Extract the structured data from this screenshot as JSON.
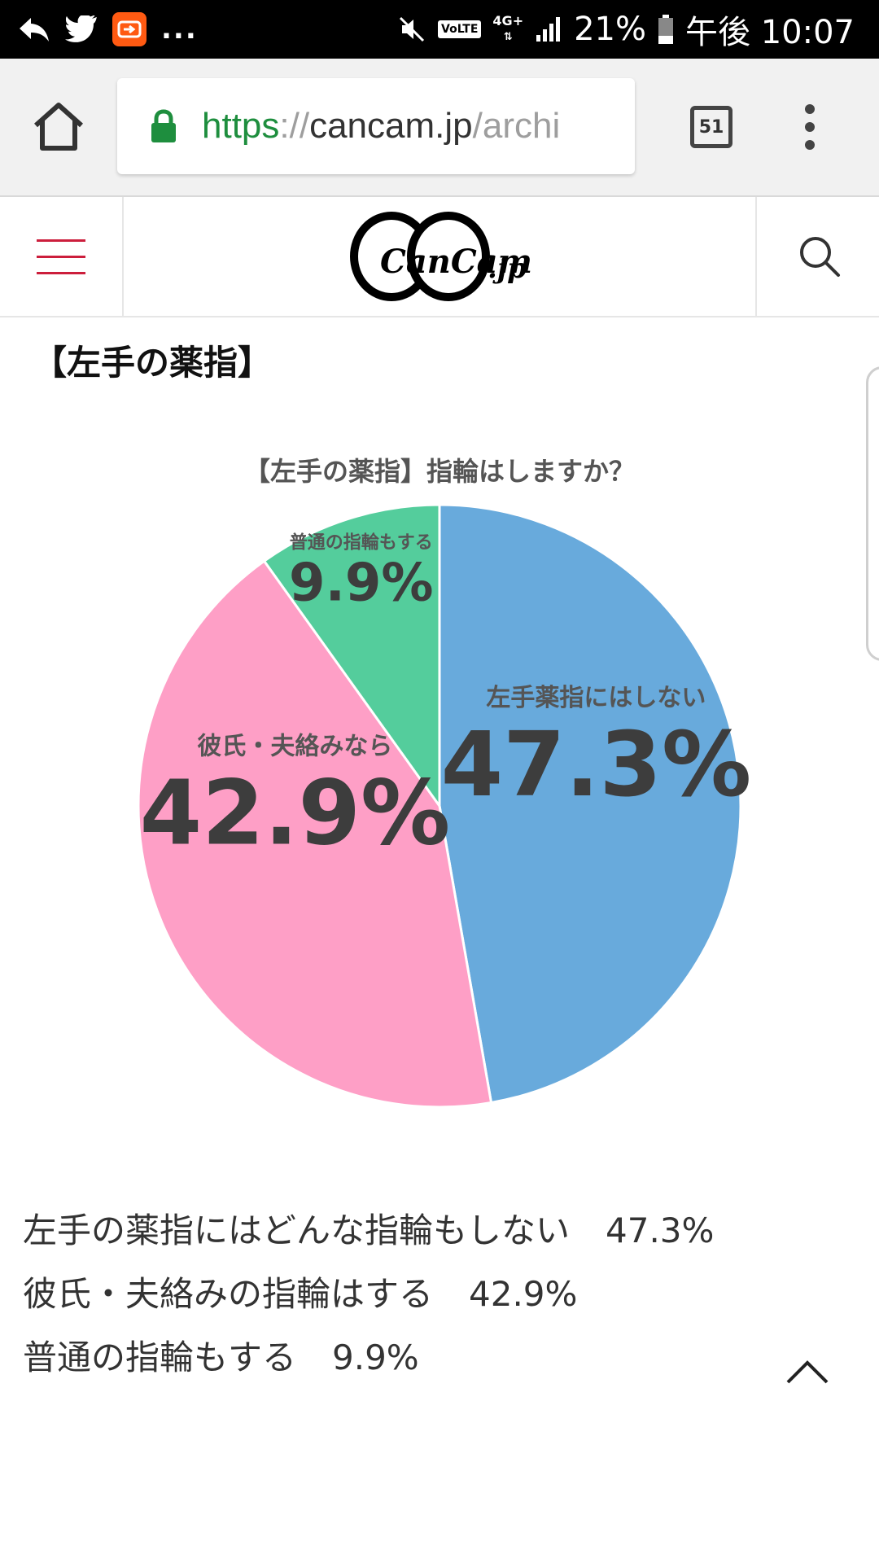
{
  "status_bar": {
    "more": "...",
    "volte": "VoLTE",
    "network": "4G+",
    "battery": "21%",
    "time": "午後 10:07"
  },
  "browser": {
    "url_scheme": "https",
    "url_sep": "://",
    "url_host": "cancam.jp",
    "url_path": "/archi",
    "tab_count": "51"
  },
  "site": {
    "logo_text": "CanCam",
    "logo_suffix": ".jp"
  },
  "article": {
    "section_heading": "【左手の薬指】"
  },
  "chart_data": {
    "type": "pie",
    "title": "【左手の薬指】指輪はしますか？",
    "slices": [
      {
        "label": "左手薬指にはしない",
        "value": 47.3,
        "value_label": "47.3%",
        "color": "#68aadc"
      },
      {
        "label": "彼氏・夫絡みなら",
        "value": 42.9,
        "value_label": "42.9%",
        "color": "#fe9fc6"
      },
      {
        "label": "普通の指輪もする",
        "value": 9.9,
        "value_label": "9.9%",
        "color": "#54cd9c"
      }
    ]
  },
  "results": [
    {
      "text": "左手の薬指にはどんな指輪もしない",
      "pct": "47.3%"
    },
    {
      "text": "彼氏・夫絡みの指輪はする",
      "pct": "42.9%"
    },
    {
      "text": "普通の指輪もする",
      "pct": "9.9%"
    }
  ],
  "colors": {
    "accent_red": "#cc1e3c",
    "url_green": "#1e8e3e"
  }
}
